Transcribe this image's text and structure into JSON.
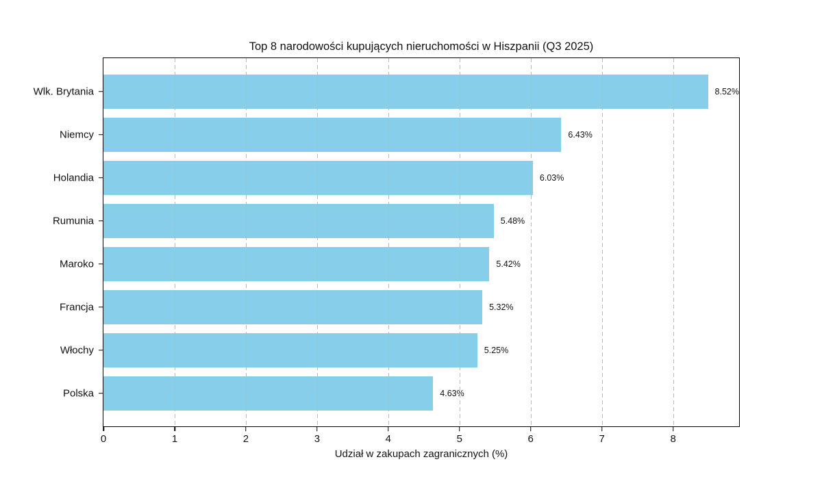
{
  "chart_data": {
    "type": "bar",
    "orientation": "horizontal",
    "title": "Top 8 narodowości kupujących nieruchomości w Hiszpanii (Q3 2025)",
    "xlabel": "Udział w zakupach zagranicznych (%)",
    "categories": [
      "Wlk. Brytania",
      "Niemcy",
      "Holandia",
      "Rumunia",
      "Maroko",
      "Francja",
      "Włochy",
      "Polska"
    ],
    "values": [
      8.52,
      6.43,
      6.03,
      5.48,
      5.42,
      5.32,
      5.25,
      4.63
    ],
    "value_labels": [
      "8.52%",
      "6.43%",
      "6.03%",
      "5.48%",
      "5.42%",
      "5.32%",
      "5.25%",
      "4.63%"
    ],
    "x_ticks": [
      0,
      1,
      2,
      3,
      4,
      5,
      6,
      7,
      8
    ],
    "xlim": [
      0,
      8.946
    ],
    "bar_color": "#87CEEB",
    "grid": "vertical-dashed-over-bars",
    "grid_color": "#b9b9b9",
    "axis_color": "#000000",
    "background_color": "#ffffff",
    "legend": null
  }
}
